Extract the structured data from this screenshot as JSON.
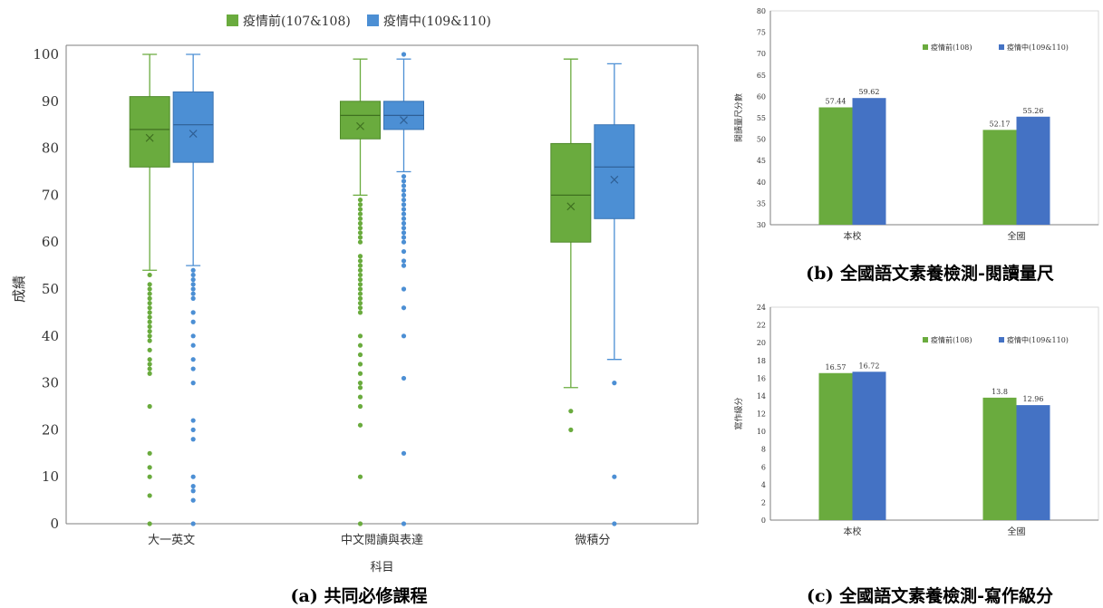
{
  "colors": {
    "before": "#6aab3e",
    "during": "#4c8fd4",
    "bar_before": "#6aab3e",
    "bar_during": "#4472c4",
    "axis": "#7f7f7f",
    "grid": "#d9d9d9"
  },
  "charts": [
    {
      "id": "a",
      "caption": "(a) 共同必修課程",
      "chart_data": {
        "type": "box",
        "xlabel": "科目",
        "ylabel": "成績",
        "ylim": [
          0,
          100
        ],
        "yticks": [
          0,
          10,
          20,
          30,
          40,
          50,
          60,
          70,
          80,
          90,
          100
        ],
        "categories": [
          "大一英文",
          "中文閱讀與表達",
          "微積分"
        ],
        "grid": false,
        "legend_position": "top",
        "series": [
          {
            "name": "疫情前(107&108)",
            "color": "#6aab3e",
            "boxes": [
              {
                "min": 54,
                "q1": 76,
                "median": 84,
                "q3": 91,
                "max": 100,
                "mean": 82.2,
                "outliers": [
                  53,
                  51,
                  50,
                  49,
                  48,
                  47,
                  46,
                  45,
                  44,
                  43,
                  42,
                  41,
                  40,
                  39,
                  37,
                  35,
                  34,
                  33,
                  32,
                  25,
                  15,
                  12,
                  10,
                  6,
                  0
                ]
              },
              {
                "min": 70,
                "q1": 82,
                "median": 87,
                "q3": 90,
                "max": 99,
                "mean": 84.7,
                "outliers": [
                  69,
                  68,
                  67,
                  66,
                  65,
                  64,
                  63,
                  62,
                  61,
                  60,
                  57,
                  56,
                  55,
                  54,
                  53,
                  52,
                  51,
                  50,
                  49,
                  48,
                  47,
                  46,
                  45,
                  40,
                  38,
                  36,
                  34,
                  32,
                  30,
                  29,
                  27,
                  25,
                  21,
                  10,
                  0
                ]
              },
              {
                "min": 29,
                "q1": 60,
                "median": 70,
                "q3": 81,
                "max": 99,
                "mean": 67.6,
                "outliers": [
                  24,
                  20
                ]
              }
            ]
          },
          {
            "name": "疫情中(109&110)",
            "color": "#4c8fd4",
            "boxes": [
              {
                "min": 55,
                "q1": 77,
                "median": 85,
                "q3": 92,
                "max": 100,
                "mean": 83.1,
                "outliers": [
                  54,
                  53,
                  52,
                  51,
                  50,
                  49,
                  48,
                  45,
                  43,
                  40,
                  38,
                  35,
                  33,
                  30,
                  22,
                  20,
                  18,
                  10,
                  8,
                  7,
                  5,
                  0
                ]
              },
              {
                "min": 75,
                "q1": 84,
                "median": 87,
                "q3": 90,
                "max": 99,
                "mean": 86,
                "max_outlier_above": 100,
                "outliers": [
                  100,
                  74,
                  73,
                  72,
                  71,
                  70,
                  69,
                  68,
                  67,
                  66,
                  65,
                  64,
                  63,
                  62,
                  61,
                  60,
                  58,
                  56,
                  55,
                  50,
                  46,
                  40,
                  31,
                  15,
                  0
                ]
              },
              {
                "min": 35,
                "q1": 65,
                "median": 76,
                "q3": 85,
                "max": 98,
                "mean": 73.3,
                "outliers": [
                  30,
                  10,
                  0
                ]
              }
            ]
          }
        ]
      }
    },
    {
      "id": "b",
      "caption": "(b) 全國語文素養檢測-閱讀量尺",
      "chart_data": {
        "type": "bar",
        "ylabel": "閱讀量尺分數",
        "ylim": [
          30,
          80
        ],
        "yticks": [
          30,
          35,
          40,
          45,
          50,
          55,
          60,
          65,
          70,
          75,
          80
        ],
        "categories": [
          "本校",
          "全國"
        ],
        "legend_position": "top-right",
        "series": [
          {
            "name": "疫情前(108)",
            "color": "#6aab3e",
            "values": [
              57.44,
              52.17
            ],
            "labels": [
              "57.44",
              "52.17"
            ]
          },
          {
            "name": "疫情中(109&110)",
            "color": "#4472c4",
            "values": [
              59.62,
              55.26
            ],
            "labels": [
              "59.62",
              "55.26"
            ]
          }
        ]
      }
    },
    {
      "id": "c",
      "caption": "(c) 全國語文素養檢測-寫作級分",
      "chart_data": {
        "type": "bar",
        "ylabel": "寫作級分",
        "ylim": [
          0,
          24
        ],
        "yticks": [
          0,
          2,
          4,
          6,
          8,
          10,
          12,
          14,
          16,
          18,
          20,
          22,
          24
        ],
        "categories": [
          "本校",
          "全國"
        ],
        "legend_position": "top-right",
        "series": [
          {
            "name": "疫情前(108)",
            "color": "#6aab3e",
            "values": [
              16.57,
              13.8
            ],
            "labels": [
              "16.57",
              "13.8"
            ]
          },
          {
            "name": "疫情中(109&110)",
            "color": "#4472c4",
            "values": [
              16.72,
              12.96
            ],
            "labels": [
              "16.72",
              "12.96"
            ]
          }
        ]
      }
    }
  ]
}
